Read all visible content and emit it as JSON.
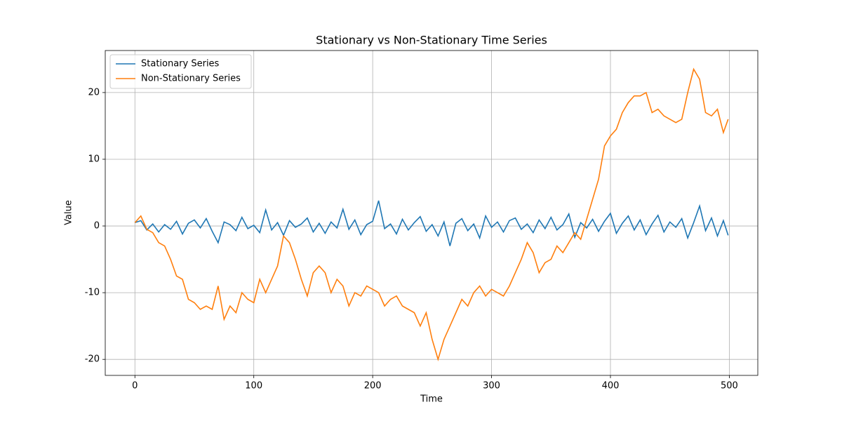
{
  "chart_data": {
    "type": "line",
    "title": "Stationary vs Non-Stationary Time Series",
    "x_label": "Time",
    "y_label": "Value",
    "x": [
      0,
      5,
      10,
      15,
      20,
      25,
      30,
      35,
      40,
      45,
      50,
      55,
      60,
      65,
      70,
      75,
      80,
      85,
      90,
      95,
      100,
      105,
      110,
      115,
      120,
      125,
      130,
      135,
      140,
      145,
      150,
      155,
      160,
      165,
      170,
      175,
      180,
      185,
      190,
      195,
      200,
      205,
      210,
      215,
      220,
      225,
      230,
      235,
      240,
      245,
      250,
      255,
      260,
      265,
      270,
      275,
      280,
      285,
      290,
      295,
      300,
      305,
      310,
      315,
      320,
      325,
      330,
      335,
      340,
      345,
      350,
      355,
      360,
      365,
      370,
      375,
      380,
      385,
      390,
      395,
      400,
      405,
      410,
      415,
      420,
      425,
      430,
      435,
      440,
      445,
      450,
      455,
      460,
      465,
      470,
      475,
      480,
      485,
      490,
      495,
      499
    ],
    "series": [
      {
        "name": "Stationary Series",
        "color": "#1f77b4",
        "values": [
          0.5,
          0.8,
          -0.6,
          0.3,
          -0.9,
          0.2,
          -0.5,
          0.7,
          -1.2,
          0.4,
          0.9,
          -0.3,
          1.1,
          -0.8,
          -2.5,
          0.6,
          0.2,
          -0.7,
          1.3,
          -0.4,
          0.1,
          -1.0,
          2.4,
          -0.6,
          0.5,
          -1.4,
          0.8,
          -0.2,
          0.3,
          1.2,
          -0.9,
          0.4,
          -1.1,
          0.6,
          -0.3,
          2.5,
          -0.5,
          0.9,
          -1.3,
          0.2,
          0.7,
          3.8,
          -0.4,
          0.3,
          -1.2,
          1.0,
          -0.6,
          0.5,
          1.4,
          -0.8,
          0.2,
          -1.5,
          0.6,
          -3.0,
          0.4,
          1.1,
          -0.7,
          0.3,
          -1.8,
          1.5,
          -0.2,
          0.6,
          -0.9,
          0.8,
          1.2,
          -0.5,
          0.3,
          -1.0,
          0.9,
          -0.4,
          1.3,
          -0.6,
          0.2,
          1.8,
          -1.7,
          0.5,
          -0.3,
          1.0,
          -0.8,
          0.7,
          1.9,
          -1.1,
          0.4,
          1.5,
          -0.6,
          0.9,
          -1.3,
          0.3,
          1.6,
          -0.9,
          0.6,
          -0.2,
          1.1,
          -1.8,
          0.5,
          3.0,
          -0.7,
          1.2,
          -1.5,
          0.8,
          -1.4
        ]
      },
      {
        "name": "Non-Stationary Series",
        "color": "#ff7f0e",
        "values": [
          0.5,
          1.5,
          -0.5,
          -1,
          -2.5,
          -3,
          -5,
          -7.5,
          -8,
          -11,
          -11.5,
          -12.5,
          -12,
          -12.5,
          -9,
          -14,
          -12,
          -13,
          -10,
          -11,
          -11.5,
          -8,
          -10,
          -8,
          -6,
          -1.5,
          -2.5,
          -5,
          -8,
          -10.5,
          -7,
          -6,
          -7,
          -10,
          -8,
          -9,
          -12,
          -10,
          -10.5,
          -9,
          -9.5,
          -10,
          -12,
          -11,
          -10.5,
          -12,
          -12.5,
          -13,
          -15,
          -13,
          -17,
          -20,
          -17,
          -15,
          -13,
          -11,
          -12,
          -10,
          -9,
          -10.5,
          -9.5,
          -10,
          -10.5,
          -9,
          -7,
          -5,
          -2.5,
          -4,
          -7,
          -5.5,
          -5,
          -3,
          -4,
          -2.5,
          -1,
          -2,
          1,
          4,
          7,
          12,
          13.5,
          14.5,
          17,
          18.5,
          19.5,
          19.5,
          20,
          17,
          17.5,
          16.5,
          16,
          15.5,
          16,
          20,
          23.5,
          22,
          17,
          16.5,
          17.5,
          14,
          16
        ]
      }
    ],
    "xlim": [
      -24.95,
      523.95
    ],
    "ylim": [
      -22.4,
      26.3
    ],
    "xticks": [
      0,
      100,
      200,
      300,
      400,
      500
    ],
    "yticks": [
      -20,
      -10,
      0,
      10,
      20
    ],
    "grid": true,
    "legend": "upper left"
  }
}
